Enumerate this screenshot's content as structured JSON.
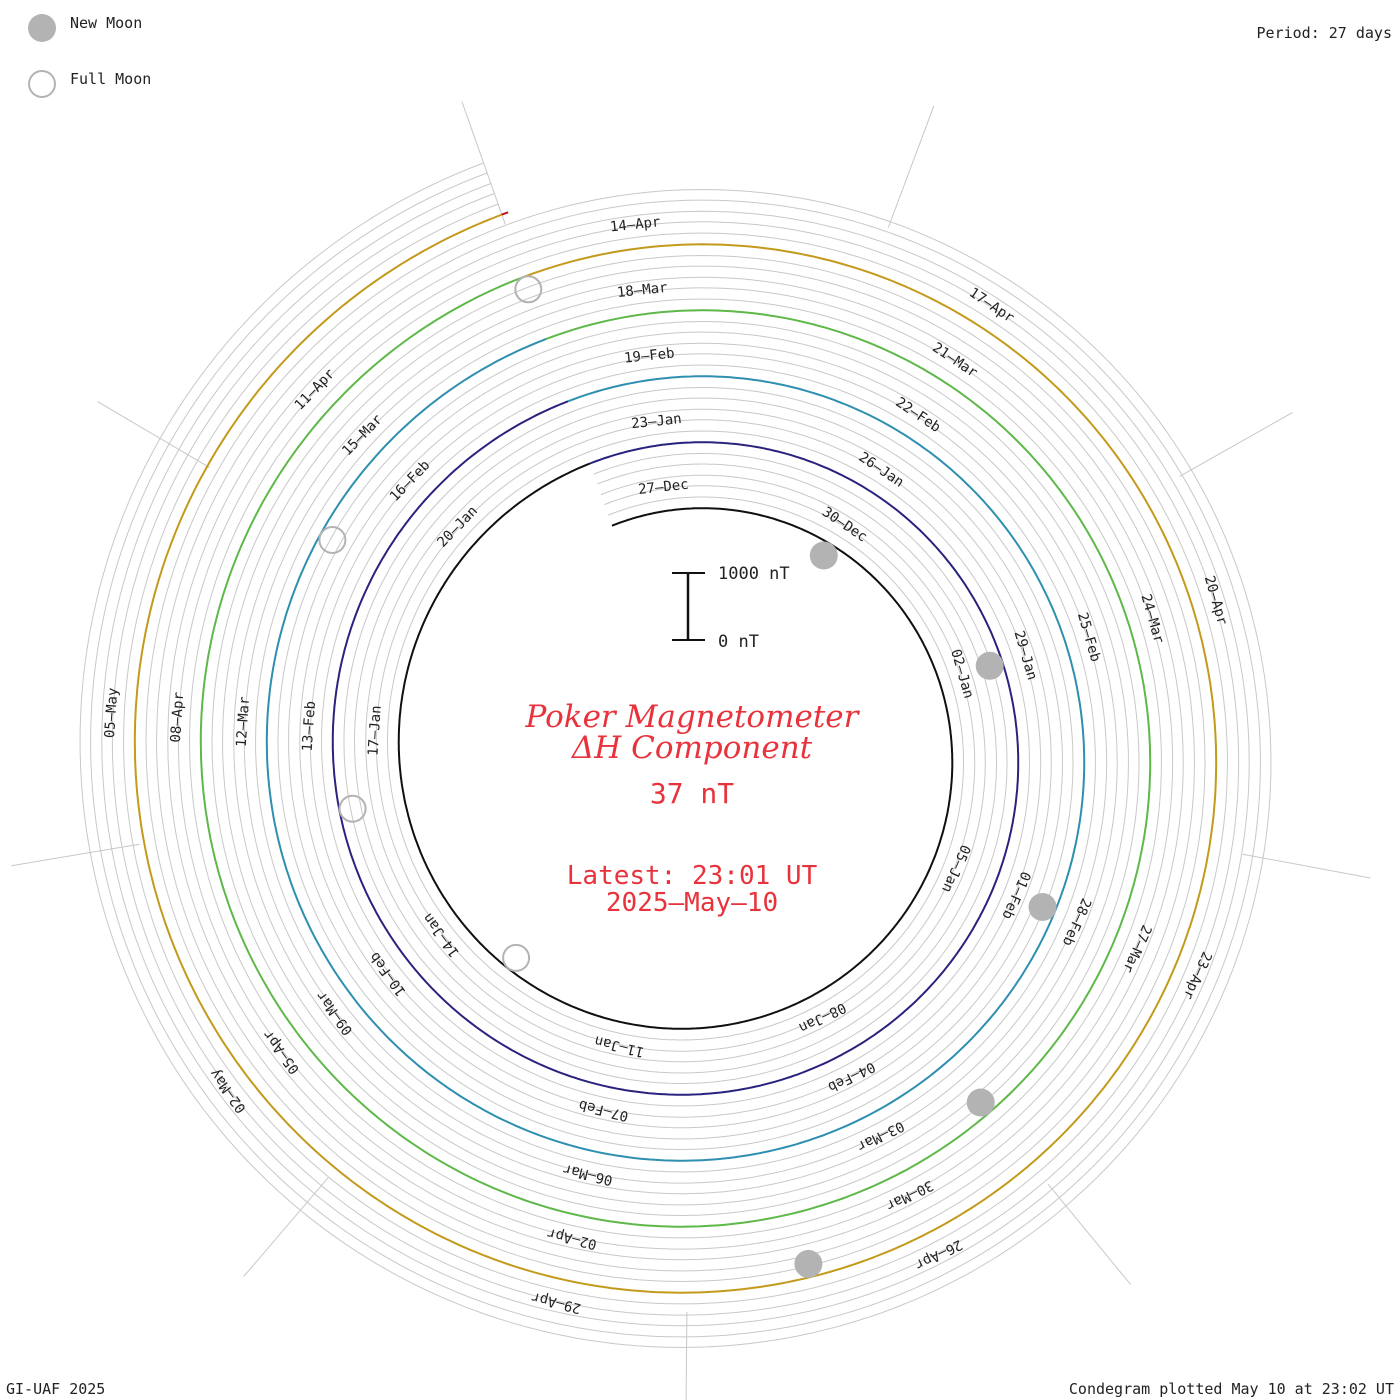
{
  "legend": {
    "new_moon_label": "New Moon",
    "full_moon_label": "Full Moon",
    "new_moon_color": "#b3b3b3",
    "full_moon_color": "#b3b3b3"
  },
  "period_label": "Period: 27 days",
  "footer_left": "GI-UAF 2025",
  "footer_right": "Condegram plotted May 10 at 23:02 UT",
  "center": {
    "title_line1": "Poker Magnetometer",
    "title_line2": "ΔH Component",
    "current_value": "37 nT",
    "latest_line1": "Latest: 23:01 UT",
    "latest_line2": "2025–May–10",
    "text_color": "#e8323c"
  },
  "chart_data": {
    "type": "line",
    "layout": "spiral-condegram",
    "period_days": 27,
    "scale_bar": {
      "top_label": "1000 nT",
      "bottom_label": "0 nT",
      "top_value": 1000,
      "bottom_value": 0
    },
    "series": [
      {
        "color": "#101010",
        "start": "2024-12-26",
        "end": "2025-01-22",
        "date_labels": [
          "27–Dec",
          "30–Dec",
          "02–Jan",
          "05–Jan",
          "08–Jan",
          "11–Jan",
          "14–Jan",
          "17–Jan",
          "20–Jan"
        ]
      },
      {
        "color": "#2a237e",
        "start": "2025-01-22",
        "end": "2025-02-18",
        "date_labels": [
          "23–Jan",
          "26–Jan",
          "29–Jan",
          "01–Feb",
          "04–Feb",
          "07–Feb",
          "10–Feb",
          "13–Feb",
          "16–Feb"
        ]
      },
      {
        "color": "#2f8fb0",
        "start": "2025-02-18",
        "end": "2025-03-17",
        "date_labels": [
          "19–Feb",
          "22–Feb",
          "25–Feb",
          "28–Feb",
          "03–Mar",
          "06–Mar",
          "09–Mar",
          "12–Mar",
          "15–Mar"
        ]
      },
      {
        "color": "#5fb84a",
        "start": "2025-03-17",
        "end": "2025-04-13",
        "date_labels": [
          "18–Mar",
          "21–Mar",
          "24–Mar",
          "27–Mar",
          "30–Mar",
          "02–Apr",
          "05–Apr",
          "08–Apr",
          "11–Apr"
        ]
      },
      {
        "color": "#c39a1c",
        "start": "2025-04-13",
        "end": "2025-05-10",
        "date_labels": [
          "14–Apr",
          "17–Apr",
          "20–Apr",
          "23–Apr",
          "26–Apr",
          "29–Apr",
          "02–May",
          "05–May"
        ]
      },
      {
        "color": "#c0141c",
        "start": "2025-05-10",
        "end": "2025-05-10"
      }
    ],
    "new_moon_dates": [
      "2024-12-30",
      "2025-01-29",
      "2025-02-28",
      "2025-03-29",
      "2025-04-27"
    ],
    "full_moon_dates": [
      "2025-01-13",
      "2025-02-12",
      "2025-03-14",
      "2025-04-13"
    ]
  }
}
